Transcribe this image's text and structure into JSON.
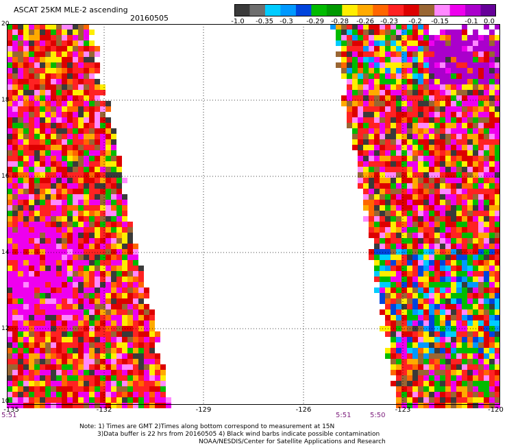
{
  "header": {
    "title": "ASCAT 25KM MLE-2 ascending",
    "date": "20160505"
  },
  "colorbar": {
    "colors": [
      "#3a3a3a",
      "#6e6e6e",
      "#00ccff",
      "#0099ff",
      "#0044dd",
      "#00bb00",
      "#009900",
      "#ffee00",
      "#ffaa00",
      "#ff6600",
      "#ff2222",
      "#dd0000",
      "#996633",
      "#ff88ff",
      "#ee00ee",
      "#aa00cc",
      "#660099"
    ],
    "labels": [
      "-1.0",
      "-0.35",
      "-0.3",
      "-0.29",
      "-0.28",
      "-0.26",
      "-0.23",
      "-0.2",
      "-0.15",
      "-0.1",
      "0.0"
    ]
  },
  "axes": {
    "lat_labels": [
      "20",
      "18",
      "16",
      "14",
      "12",
      "10"
    ],
    "lon_labels": [
      "-135",
      "-132",
      "-129",
      "-126",
      "-123",
      "-120"
    ],
    "lat_range": [
      10,
      20
    ],
    "lon_range": [
      -135,
      -120
    ]
  },
  "times": {
    "left": "5:51",
    "mid": "5:51",
    "right": "5:50"
  },
  "notes": {
    "line1": "Note: 1) Times are GMT 2)Times along bottom correspond to measurement at 15N",
    "line2": "3)Data buffer is 22 hrs from 20160505 4) Black wind barbs indicate possible contamination",
    "line3": "NOAA/NESDIS/Center for Satellite Applications and Research"
  }
}
